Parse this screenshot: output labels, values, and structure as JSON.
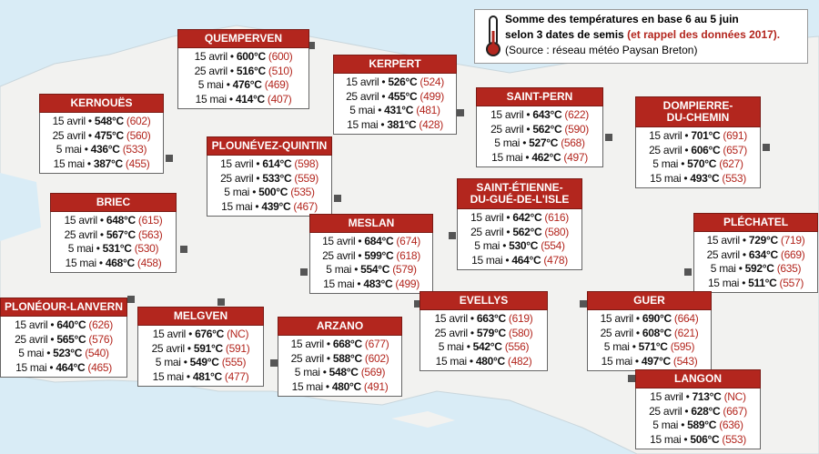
{
  "legend": {
    "line1": "Somme des températures en base 6 au 5 juin",
    "line2": "selon 3 dates de semis",
    "line2_red": "(et rappel des données 2017).",
    "source": "(Source : réseau météo Paysan Breton)"
  },
  "separator": "•",
  "stations": [
    {
      "name": "QUEMPERVEN",
      "rows": [
        {
          "date": "15 avril",
          "sum": "600°C",
          "ref": "(600)"
        },
        {
          "date": "25 avril",
          "sum": "516°C",
          "ref": "(510)"
        },
        {
          "date": "5 mai",
          "sum": "476°C",
          "ref": "(469)"
        },
        {
          "date": "15 mai",
          "sum": "414°C",
          "ref": "(407)"
        }
      ]
    },
    {
      "name": "KERNOUËS",
      "rows": [
        {
          "date": "15 avril",
          "sum": "548°C",
          "ref": "(602)"
        },
        {
          "date": "25 avril",
          "sum": "475°C",
          "ref": "(560)"
        },
        {
          "date": "5 mai",
          "sum": "436°C",
          "ref": "(533)"
        },
        {
          "date": "15 mai",
          "sum": "387°C",
          "ref": "(455)"
        }
      ]
    },
    {
      "name": "KERPERT",
      "rows": [
        {
          "date": "15 avril",
          "sum": "526°C",
          "ref": "(524)"
        },
        {
          "date": "25 avril",
          "sum": "455°C",
          "ref": "(499)"
        },
        {
          "date": "5 mai",
          "sum": "431°C",
          "ref": "(481)"
        },
        {
          "date": "15 mai",
          "sum": "381°C",
          "ref": "(428)"
        }
      ]
    },
    {
      "name": "SAINT-PERN",
      "rows": [
        {
          "date": "15 avril",
          "sum": "643°C",
          "ref": "(622)"
        },
        {
          "date": "25 avril",
          "sum": "562°C",
          "ref": "(590)"
        },
        {
          "date": "5 mai",
          "sum": "527°C",
          "ref": "(568)"
        },
        {
          "date": "15 mai",
          "sum": "462°C",
          "ref": "(497)"
        }
      ]
    },
    {
      "name": "DOMPIERRE-\nDU-CHEMIN",
      "rows": [
        {
          "date": "15 avril",
          "sum": "701°C",
          "ref": "(691)"
        },
        {
          "date": "25 avril",
          "sum": "606°C",
          "ref": "(657)"
        },
        {
          "date": "5 mai",
          "sum": "570°C",
          "ref": "(627)"
        },
        {
          "date": "15 mai",
          "sum": "493°C",
          "ref": "(553)"
        }
      ]
    },
    {
      "name": "PLOUNÉVEZ-QUINTIN",
      "rows": [
        {
          "date": "15 avril",
          "sum": "614°C",
          "ref": "(598)"
        },
        {
          "date": "25 avril",
          "sum": "533°C",
          "ref": "(559)"
        },
        {
          "date": "5 mai",
          "sum": "500°C",
          "ref": "(535)"
        },
        {
          "date": "15 mai",
          "sum": "439°C",
          "ref": "(467)"
        }
      ]
    },
    {
      "name": "BRIEC",
      "rows": [
        {
          "date": "15 avril",
          "sum": "648°C",
          "ref": "(615)"
        },
        {
          "date": "25 avril",
          "sum": "567°C",
          "ref": "(563)"
        },
        {
          "date": "5 mai",
          "sum": "531°C",
          "ref": "(530)"
        },
        {
          "date": "15 mai",
          "sum": "468°C",
          "ref": "(458)"
        }
      ]
    },
    {
      "name": "SAINT-ÉTIENNE-\nDU-GUÉ-DE-L'ISLE",
      "rows": [
        {
          "date": "15 avril",
          "sum": "642°C",
          "ref": "(616)"
        },
        {
          "date": "25 avril",
          "sum": "562°C",
          "ref": "(580)"
        },
        {
          "date": "5 mai",
          "sum": "530°C",
          "ref": "(554)"
        },
        {
          "date": "15 mai",
          "sum": "464°C",
          "ref": "(478)"
        }
      ]
    },
    {
      "name": "MESLAN",
      "rows": [
        {
          "date": "15 avril",
          "sum": "684°C",
          "ref": "(674)"
        },
        {
          "date": "25 avril",
          "sum": "599°C",
          "ref": "(618)"
        },
        {
          "date": "5 mai",
          "sum": "554°C",
          "ref": "(579)"
        },
        {
          "date": "15 mai",
          "sum": "483°C",
          "ref": "(499)"
        }
      ]
    },
    {
      "name": "PLÉCHATEL",
      "rows": [
        {
          "date": "15 avril",
          "sum": "729°C",
          "ref": "(719)"
        },
        {
          "date": "25 avril",
          "sum": "634°C",
          "ref": "(669)"
        },
        {
          "date": "5 mai",
          "sum": "592°C",
          "ref": "(635)"
        },
        {
          "date": "15 mai",
          "sum": "511°C",
          "ref": "(557)"
        }
      ]
    },
    {
      "name": "PLONÉOUR-LANVERN",
      "rows": [
        {
          "date": "15 avril",
          "sum": "640°C",
          "ref": "(626)"
        },
        {
          "date": "25 avril",
          "sum": "565°C",
          "ref": "(576)"
        },
        {
          "date": "5 mai",
          "sum": "523°C",
          "ref": "(540)"
        },
        {
          "date": "15 mai",
          "sum": "464°C",
          "ref": "(465)"
        }
      ]
    },
    {
      "name": "MELGVEN",
      "rows": [
        {
          "date": "15 avril",
          "sum": "676°C",
          "ref": "(NC)"
        },
        {
          "date": "25 avril",
          "sum": "591°C",
          "ref": "(591)"
        },
        {
          "date": "5 mai",
          "sum": "549°C",
          "ref": "(555)"
        },
        {
          "date": "15 mai",
          "sum": "481°C",
          "ref": "(477)"
        }
      ]
    },
    {
      "name": "ARZANO",
      "rows": [
        {
          "date": "15 avril",
          "sum": "668°C",
          "ref": "(677)"
        },
        {
          "date": "25 avril",
          "sum": "588°C",
          "ref": "(602)"
        },
        {
          "date": "5 mai",
          "sum": "548°C",
          "ref": "(569)"
        },
        {
          "date": "15 mai",
          "sum": "480°C",
          "ref": "(491)"
        }
      ]
    },
    {
      "name": "EVELLYS",
      "rows": [
        {
          "date": "15 avril",
          "sum": "663°C",
          "ref": "(619)"
        },
        {
          "date": "25 avril",
          "sum": "579°C",
          "ref": "(580)"
        },
        {
          "date": "5 mai",
          "sum": "542°C",
          "ref": "(556)"
        },
        {
          "date": "15 mai",
          "sum": "480°C",
          "ref": "(482)"
        }
      ]
    },
    {
      "name": "GUER",
      "rows": [
        {
          "date": "15 avril",
          "sum": "690°C",
          "ref": "(664)"
        },
        {
          "date": "25 avril",
          "sum": "608°C",
          "ref": "(621)"
        },
        {
          "date": "5 mai",
          "sum": "571°C",
          "ref": "(595)"
        },
        {
          "date": "15 mai",
          "sum": "497°C",
          "ref": "(543)"
        }
      ]
    },
    {
      "name": "LANGON",
      "rows": [
        {
          "date": "15 avril",
          "sum": "713°C",
          "ref": "(NC)"
        },
        {
          "date": "25 avril",
          "sum": "628°C",
          "ref": "(667)"
        },
        {
          "date": "5 mai",
          "sum": "589°C",
          "ref": "(636)"
        },
        {
          "date": "15 mai",
          "sum": "506°C",
          "ref": "(553)"
        }
      ]
    }
  ]
}
